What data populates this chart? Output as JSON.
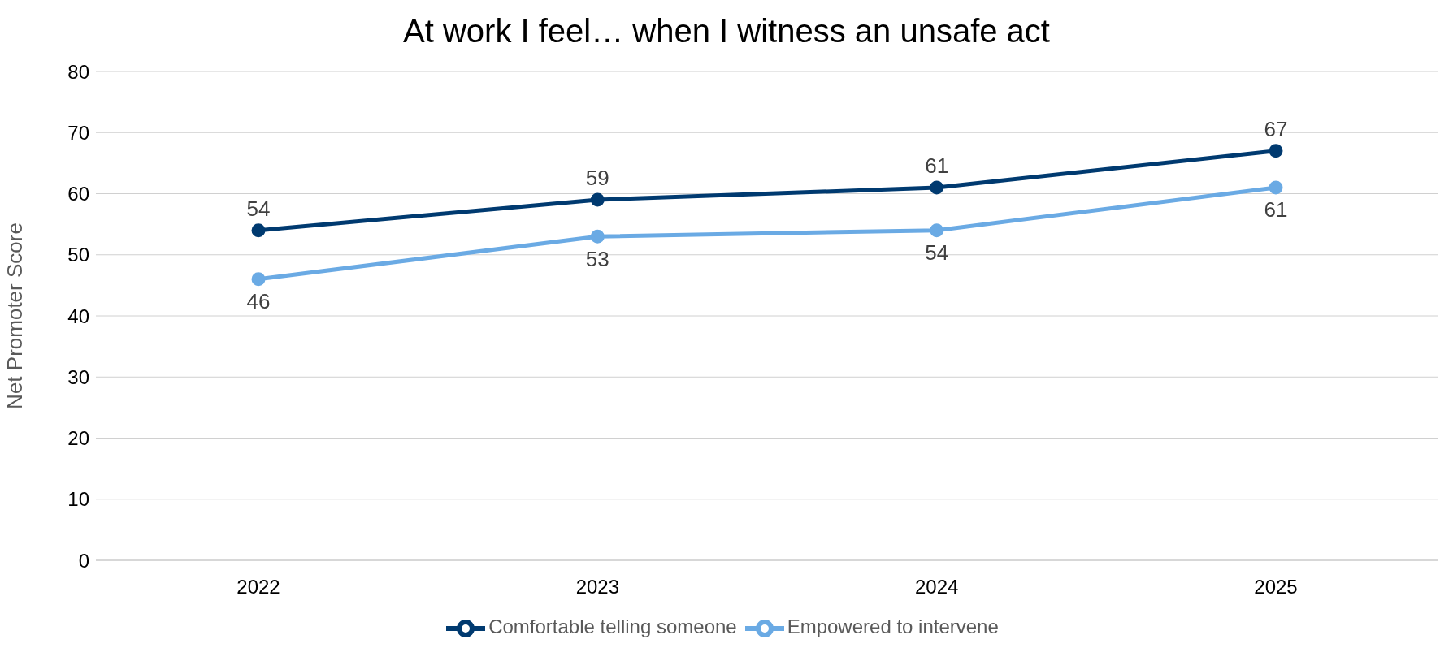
{
  "chart_data": {
    "type": "line",
    "title": "At work I feel… when I witness an unsafe act",
    "ylabel": "Net Promoter Score",
    "categories": [
      "2022",
      "2023",
      "2024",
      "2025"
    ],
    "series": [
      {
        "name": "Comfortable telling someone",
        "color": "#003a70",
        "values": [
          54,
          59,
          61,
          67
        ]
      },
      {
        "name": "Empowered to intervene",
        "color": "#6aaae4",
        "values": [
          46,
          53,
          54,
          61
        ]
      }
    ],
    "ylim": [
      0,
      80
    ],
    "yticks": [
      0,
      10,
      20,
      30,
      40,
      50,
      60,
      70,
      80
    ],
    "grid": "y",
    "legend": "bottom",
    "marker": "circle",
    "line_style": "solid",
    "data_labels": true
  }
}
